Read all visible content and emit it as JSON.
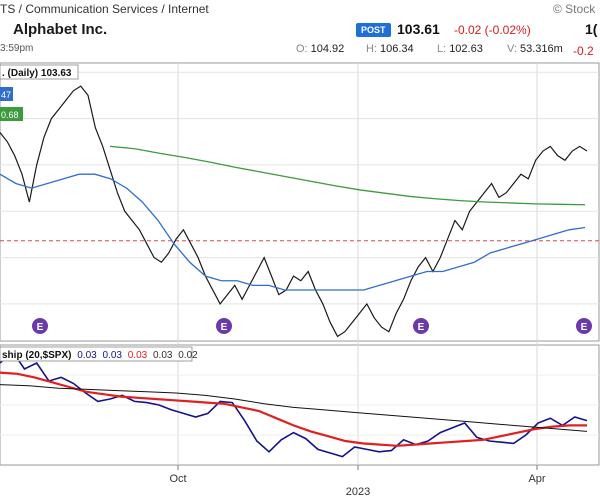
{
  "header": {
    "breadcrumb": "TS / Communication Services / Internet",
    "watermark": "© Stock",
    "company": "Alphabet Inc.",
    "time": "3:59pm",
    "post_badge": "POST",
    "price": "103.61",
    "change": "-0.02 (-0.02%)",
    "price_edge": "1(",
    "change_edge": "-0.2",
    "ohlc": {
      "o": "104.92",
      "h": "106.34",
      "l": "102.63",
      "v": "53.316m"
    },
    "ohlc_keys": {
      "o": "O:",
      "h": "H:",
      "l": "L:",
      "v": "V:"
    }
  },
  "chart_data": [
    {
      "type": "line",
      "panel": "price",
      "legend": ". (Daily) 103.63",
      "legend_values": [
        "47",
        "0.68"
      ],
      "series": [
        {
          "values": [
            127,
            125,
            122,
            118,
            112,
            120,
            126,
            130,
            132,
            134,
            136,
            137,
            135,
            128,
            124,
            119,
            114,
            110,
            108,
            106,
            103,
            100,
            99,
            101,
            104,
            106,
            103,
            100,
            96,
            93,
            90,
            92,
            94,
            91,
            94,
            97,
            100,
            96,
            92,
            93,
            96,
            95,
            97,
            93,
            90,
            86,
            83,
            84,
            86,
            88,
            90,
            87,
            85,
            84,
            88,
            91,
            95,
            98,
            100,
            97,
            100,
            104,
            108,
            106,
            110,
            112,
            114,
            116,
            113,
            114,
            116,
            118,
            117,
            121,
            123,
            124,
            122,
            121,
            123,
            124,
            123
          ],
          "color": "#1a1a1a"
        },
        {
          "name": "MA50",
          "values": [
            118,
            116,
            115,
            116,
            117,
            118,
            118,
            117,
            115,
            112,
            108,
            103,
            99,
            96,
            95,
            95,
            94,
            94,
            93,
            93,
            93,
            93,
            93,
            93,
            94,
            95,
            96,
            97,
            97,
            98,
            99,
            101,
            102,
            103,
            104,
            105,
            106,
            106.5
          ],
          "color": "#2f6fcb"
        },
        {
          "name": "MA200",
          "values": [
            124,
            123.5,
            122.5,
            121.6,
            120.6,
            119.5,
            118.5,
            117.5,
            116.5,
            115.5,
            114.6,
            113.9,
            113.2,
            112.7,
            112.3,
            112.0,
            111.8,
            111.6,
            111.5,
            111.4
          ],
          "color": "#3d9a3d"
        }
      ],
      "reference_line": {
        "value": 103.63,
        "color": "#e04848",
        "style": "dashed"
      },
      "earnings_markers": [
        "E",
        "E",
        "E",
        "E"
      ],
      "ylim": [
        82,
        142
      ]
    },
    {
      "type": "line",
      "panel": "relative_strength",
      "legend": "ship (20,$SPX)",
      "legend_values": [
        "0.03",
        "0.03",
        "0.03",
        "0.03",
        "0.02"
      ],
      "series": [
        {
          "values": [
            0.031,
            0.032,
            0.0305,
            0.031,
            0.0295,
            0.0298,
            0.0293,
            0.0285,
            0.0278,
            0.028,
            0.0283,
            0.0278,
            0.0277,
            0.0275,
            0.0271,
            0.0268,
            0.0265,
            0.0268,
            0.0278,
            0.0277,
            0.0262,
            0.0245,
            0.0236,
            0.0246,
            0.0252,
            0.0247,
            0.0238,
            0.0235,
            0.0232,
            0.024,
            0.0238,
            0.0236,
            0.0237,
            0.0246,
            0.0242,
            0.0245,
            0.0252,
            0.0256,
            0.026,
            0.0248,
            0.0245,
            0.0244,
            0.0243,
            0.025,
            0.026,
            0.0264,
            0.0258,
            0.0265,
            0.0262
          ],
          "color": "#13138a"
        },
        {
          "values": [
            0.0302,
            0.0301,
            0.0298,
            0.0294,
            0.029,
            0.0286,
            0.0284,
            0.0282,
            0.0281,
            0.028,
            0.0279,
            0.0278,
            0.0277,
            0.0276,
            0.0273,
            0.027,
            0.0264,
            0.0258,
            0.0253,
            0.0249,
            0.0245,
            0.0243,
            0.0242,
            0.0241,
            0.0242,
            0.0243,
            0.0244,
            0.0245,
            0.0246,
            0.0249,
            0.0252,
            0.0255,
            0.0257,
            0.0258,
            0.0258
          ],
          "color": "#e02020"
        },
        {
          "values": [
            0.0292,
            0.0291,
            0.0289,
            0.0288,
            0.0287,
            0.0286,
            0.0285,
            0.0283,
            0.028,
            0.0276,
            0.0273,
            0.0271,
            0.0269,
            0.0267,
            0.0265,
            0.0263,
            0.0261,
            0.0259,
            0.0257,
            0.0255,
            0.0253
          ],
          "color": "#111111"
        }
      ],
      "ylim": [
        0.0225,
        0.0325
      ]
    }
  ],
  "x_axis": {
    "ticks": [
      "Oct",
      "2023",
      "Apr"
    ],
    "grid": true
  }
}
